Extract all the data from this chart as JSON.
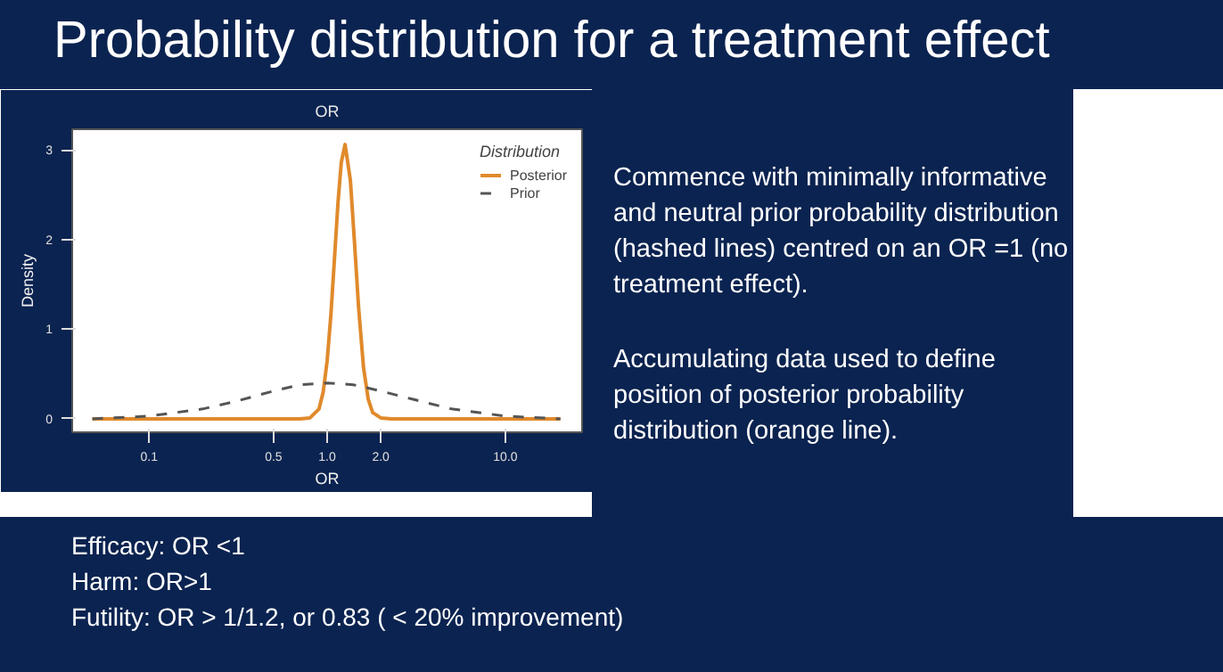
{
  "chart_data": {
    "type": "line",
    "title": "Probability distribution for a treatment effect",
    "subtitle": "OR",
    "xlabel": "OR",
    "ylabel": "Density",
    "legend_title": "Distribution",
    "log": "x",
    "xlim": [
      0.037,
      27
    ],
    "ylim": [
      -0.15,
      3.23
    ],
    "xticks": [
      0.1,
      0.5,
      {
        "value": 1,
        "label": "1.0"
      },
      {
        "value": 2,
        "label": "2.0"
      },
      {
        "value": 10,
        "label": "10.0"
      }
    ],
    "yticks": [
      0,
      1,
      2,
      3
    ],
    "grid": false,
    "legend": "top right",
    "series": [
      {
        "name": "Posterior",
        "color": "#e08a2c",
        "line_style": "solid",
        "x": [
          0.048,
          0.5,
          0.7,
          0.8,
          0.9,
          0.95,
          1.0,
          1.05,
          1.1,
          1.15,
          1.2,
          1.26,
          1.35,
          1.42,
          1.5,
          1.6,
          1.7,
          1.8,
          2.0,
          2.3,
          5,
          20.4
        ],
        "values": [
          0,
          0,
          0,
          0.01,
          0.11,
          0.3,
          0.65,
          1.17,
          1.8,
          2.41,
          2.86,
          3.06,
          2.66,
          2.0,
          1.25,
          0.57,
          0.22,
          0.07,
          0.01,
          0,
          0,
          0
        ]
      },
      {
        "name": "Prior",
        "color": "#555555",
        "line_style": "dashed",
        "x": [
          0.048,
          0.1,
          0.2,
          0.3,
          0.5,
          0.7,
          1.0,
          1.4,
          2.0,
          3.0,
          5.0,
          10,
          20.4
        ],
        "values": [
          0,
          0.03,
          0.11,
          0.19,
          0.31,
          0.38,
          0.4,
          0.38,
          0.31,
          0.22,
          0.11,
          0.03,
          0
        ]
      }
    ],
    "annotations": [
      "Commence with minimally informative and neutral prior probability distribution (hashed lines) centred on an OR =1 (no treatment effect).",
      "Accumulating data used to define position of posterior probability distribution (orange line).",
      "Efficacy: OR <1",
      "Harm: OR>1",
      "Futility: OR > 1/1.2, or 0.83 ( < 20% improvement)"
    ]
  }
}
